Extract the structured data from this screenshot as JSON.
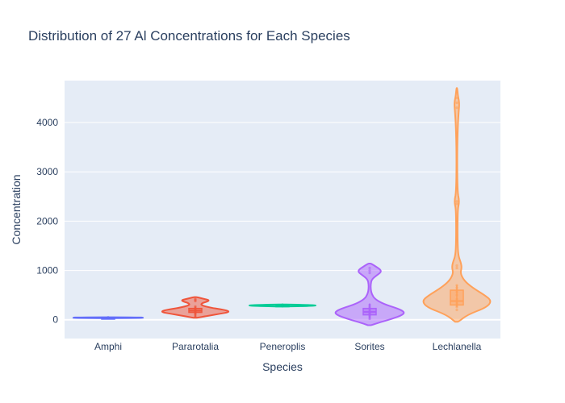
{
  "chart_data": {
    "type": "violin",
    "title": "Distribution of 27  Al Concentrations for Each Species",
    "xlabel": "Species",
    "ylabel": "Concentration",
    "categories": [
      "Amphi",
      "Pararotalia",
      "Peneroplis",
      "Sorites",
      "Lechlanella"
    ],
    "ylim": [
      -380,
      4850
    ],
    "yticks": [
      0,
      1000,
      2000,
      3000,
      4000
    ],
    "grid": true,
    "legend": "none",
    "colors": {
      "Amphi": "#636efa",
      "Pararotalia": "#ef553b",
      "Peneroplis": "#00cc96",
      "Sorites": "#ab63fa",
      "Lechlanella": "#ffa15a"
    },
    "series": [
      {
        "category": "Amphi",
        "points": [
          38,
          40,
          42,
          44,
          45,
          46,
          48
        ],
        "box": {
          "q1": 40,
          "median": 44,
          "q3": 46,
          "lower_fence": 38,
          "upper_fence": 48
        },
        "profile": [
          [
            34,
            0.3
          ],
          [
            36,
            0.9
          ],
          [
            40,
            1.0
          ],
          [
            44,
            1.0
          ],
          [
            48,
            0.9
          ],
          [
            52,
            0.3
          ]
        ]
      },
      {
        "category": "Pararotalia",
        "points": [
          60,
          100,
          130,
          150,
          170,
          190,
          210,
          240,
          270,
          380,
          400,
          420
        ],
        "box": {
          "q1": 150,
          "median": 185,
          "q3": 230,
          "lower_fence": 60,
          "upper_fence": 270
        },
        "profile": [
          [
            40,
            0.05
          ],
          [
            80,
            0.35
          ],
          [
            120,
            0.7
          ],
          [
            160,
            1.0
          ],
          [
            200,
            0.85
          ],
          [
            250,
            0.4
          ],
          [
            300,
            0.15
          ],
          [
            340,
            0.2
          ],
          [
            370,
            0.35
          ],
          [
            400,
            0.4
          ],
          [
            430,
            0.2
          ],
          [
            460,
            0.05
          ]
        ]
      },
      {
        "category": "Peneroplis",
        "points": [
          275,
          280,
          285,
          290,
          295,
          300,
          305
        ],
        "box": {
          "q1": 282,
          "median": 290,
          "q3": 298,
          "lower_fence": 275,
          "upper_fence": 305
        },
        "profile": [
          [
            270,
            0.2
          ],
          [
            280,
            0.8
          ],
          [
            290,
            1.0
          ],
          [
            300,
            0.8
          ],
          [
            310,
            0.2
          ]
        ]
      },
      {
        "category": "Sorites",
        "points": [
          20,
          60,
          90,
          110,
          130,
          150,
          170,
          200,
          230,
          260,
          300,
          950,
          1000,
          1050
        ],
        "box": {
          "q1": 100,
          "median": 160,
          "q3": 230,
          "lower_fence": 20,
          "upper_fence": 330
        },
        "profile": [
          [
            -110,
            0.05
          ],
          [
            -50,
            0.3
          ],
          [
            20,
            0.65
          ],
          [
            100,
            0.95
          ],
          [
            160,
            1.0
          ],
          [
            230,
            0.8
          ],
          [
            320,
            0.4
          ],
          [
            420,
            0.15
          ],
          [
            520,
            0.06
          ],
          [
            620,
            0.03
          ],
          [
            720,
            0.03
          ],
          [
            820,
            0.06
          ],
          [
            900,
            0.2
          ],
          [
            960,
            0.32
          ],
          [
            1010,
            0.32
          ],
          [
            1070,
            0.2
          ],
          [
            1140,
            0.04
          ]
        ]
      },
      {
        "category": "Lechlanella",
        "points": [
          200,
          260,
          300,
          340,
          380,
          420,
          500,
          560,
          600,
          650,
          700,
          1050,
          1100,
          2350,
          2400,
          4300,
          4400,
          4500
        ],
        "box": {
          "q1": 300,
          "median": 380,
          "q3": 600,
          "lower_fence": 260,
          "upper_fence": 700
        },
        "profile": [
          [
            -40,
            0.05
          ],
          [
            100,
            0.3
          ],
          [
            250,
            0.85
          ],
          [
            380,
            1.0
          ],
          [
            500,
            0.8
          ],
          [
            650,
            0.45
          ],
          [
            800,
            0.2
          ],
          [
            950,
            0.1
          ],
          [
            1050,
            0.14
          ],
          [
            1150,
            0.12
          ],
          [
            1300,
            0.04
          ],
          [
            1600,
            0.02
          ],
          [
            2000,
            0.02
          ],
          [
            2250,
            0.03
          ],
          [
            2350,
            0.06
          ],
          [
            2450,
            0.06
          ],
          [
            2600,
            0.02
          ],
          [
            3200,
            0.01
          ],
          [
            3800,
            0.02
          ],
          [
            4200,
            0.05
          ],
          [
            4350,
            0.07
          ],
          [
            4450,
            0.06
          ],
          [
            4550,
            0.03
          ],
          [
            4700,
            0.01
          ]
        ]
      }
    ]
  }
}
